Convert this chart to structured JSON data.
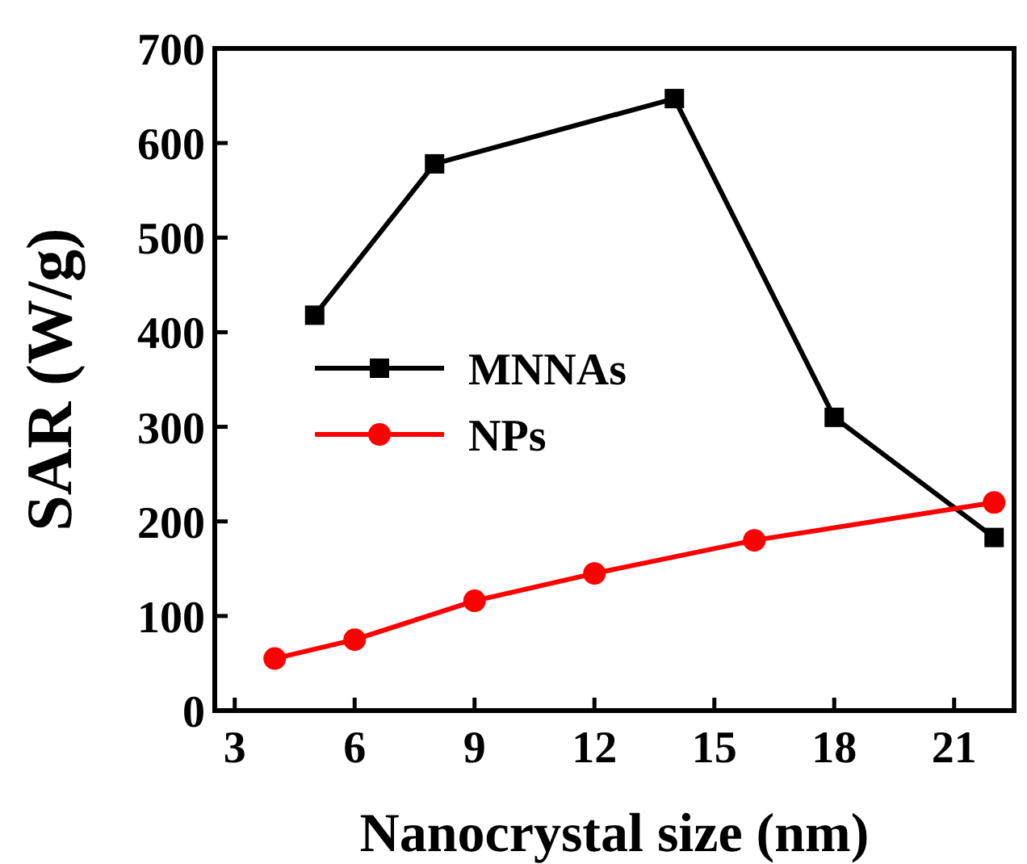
{
  "chart_data": {
    "type": "line",
    "xlabel": "Nanocrystal size (nm)",
    "ylabel": "SAR (W/g)",
    "xlim": [
      2.5,
      22.5
    ],
    "xticks": [
      3,
      6,
      9,
      12,
      15,
      18,
      21
    ],
    "ylim": [
      0,
      700
    ],
    "yticks": [
      0,
      100,
      200,
      300,
      400,
      500,
      600,
      700
    ],
    "legend": "left",
    "grid": false,
    "series": [
      {
        "name": "MNNAs",
        "color": "#000000",
        "marker": "square",
        "x": [
          5,
          8,
          14,
          18,
          22
        ],
        "values": [
          418,
          578,
          647,
          310,
          183
        ]
      },
      {
        "name": "NPs",
        "color": "#ff0000",
        "marker": "circle",
        "x": [
          4,
          6,
          9,
          12,
          16,
          22
        ],
        "values": [
          55,
          75,
          116,
          145,
          180,
          220
        ]
      }
    ]
  }
}
